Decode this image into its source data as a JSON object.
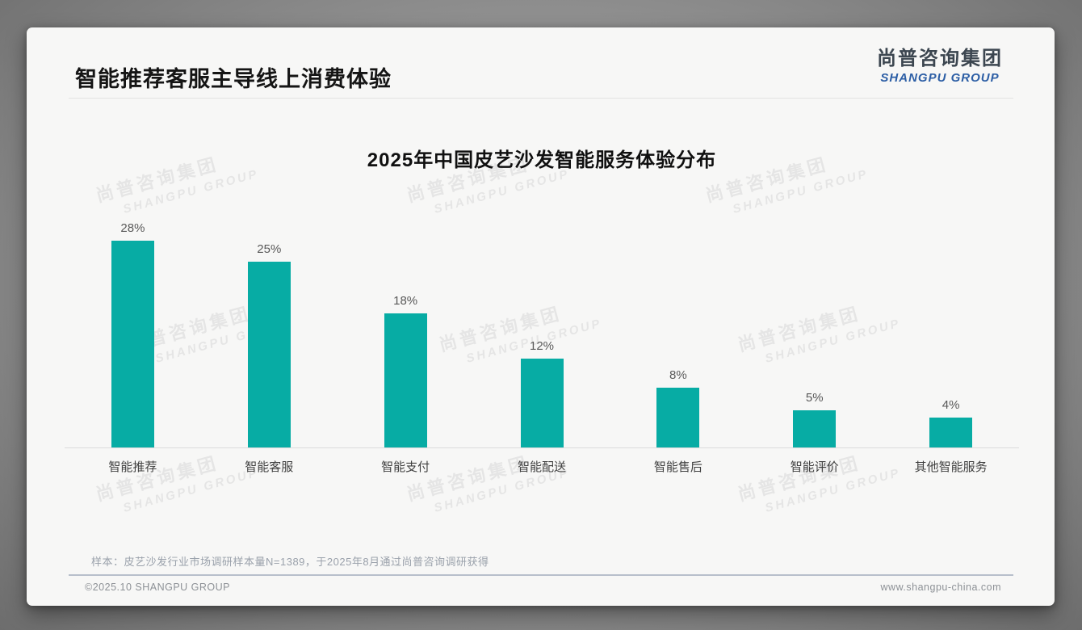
{
  "page": {
    "title": "智能推荐客服主导线上消费体验",
    "logo": {
      "cn": "尚普咨询集团",
      "en": "SHANGPU GROUP"
    },
    "watermark": {
      "line1": "尚普咨询集团",
      "line2": "SHANGPU GROUP"
    },
    "note": "样本：皮艺沙发行业市场调研样本量N=1389，于2025年8月通过尚普咨询调研获得",
    "footer": {
      "left": "©2025.10 SHANGPU GROUP",
      "right": "www.shangpu-china.com"
    }
  },
  "chart_data": {
    "type": "bar",
    "title": "2025年中国皮艺沙发智能服务体验分布",
    "categories": [
      "智能推荐",
      "智能客服",
      "智能支付",
      "智能配送",
      "智能售后",
      "智能评价",
      "其他智能服务"
    ],
    "values": [
      28,
      25,
      18,
      12,
      8,
      5,
      4
    ],
    "value_labels": [
      "28%",
      "25%",
      "18%",
      "12%",
      "8%",
      "5%",
      "4%"
    ],
    "unit": "%",
    "ylim": [
      0,
      30
    ],
    "bar_color": "#07aca4",
    "grid": false,
    "legend": false,
    "value_labels_position": "above-bars",
    "axis_line_color": "#dcdcdc"
  }
}
